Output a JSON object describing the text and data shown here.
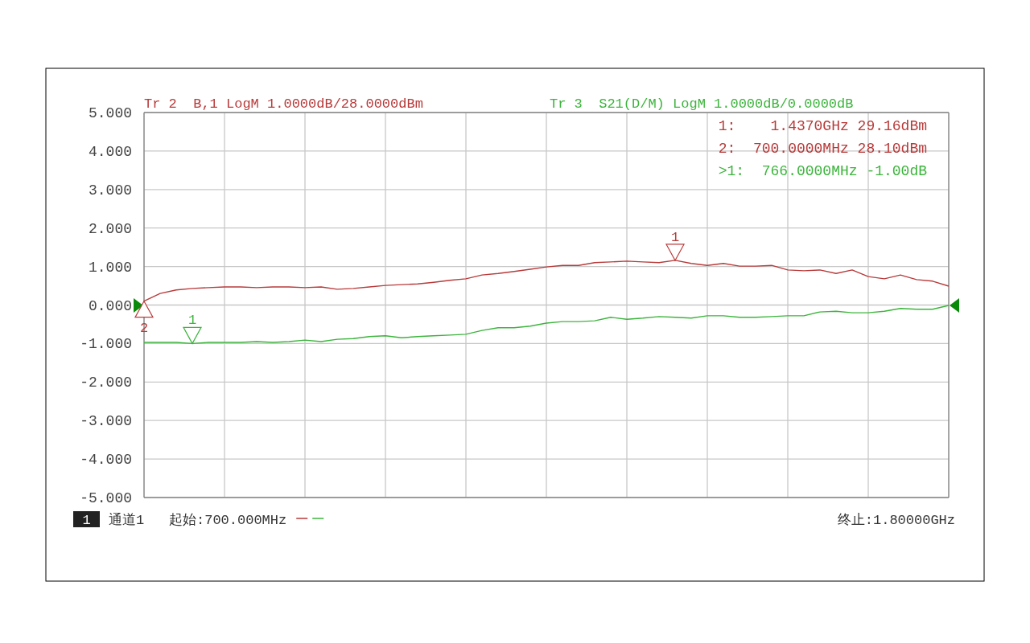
{
  "chart_data": {
    "type": "line",
    "categories": [
      null,
      null,
      null,
      null,
      null,
      null,
      null,
      null,
      null,
      null,
      null,
      null,
      null,
      null,
      null,
      null,
      null,
      null,
      null,
      null,
      null,
      null,
      null,
      null,
      null,
      null,
      null,
      null,
      null,
      null,
      null,
      null,
      null,
      null,
      null,
      null,
      null,
      null,
      null,
      null,
      null,
      null,
      null,
      null,
      null,
      null,
      null,
      null,
      null,
      null,
      null
    ],
    "ylim": [
      -5,
      5
    ],
    "yticks": [
      {
        "value": 5,
        "label": "5.000"
      },
      {
        "value": 4,
        "label": "4.000"
      },
      {
        "value": 3,
        "label": "3.000"
      },
      {
        "value": 2,
        "label": "2.000"
      },
      {
        "value": 1,
        "label": "1.000"
      },
      {
        "value": 0,
        "label": "0.000"
      },
      {
        "value": -1,
        "label": "-1.000"
      },
      {
        "value": -2,
        "label": "-2.000"
      },
      {
        "value": -3,
        "label": "-3.000"
      },
      {
        "value": -4,
        "label": "-4.000"
      },
      {
        "value": -5,
        "label": "-5.000"
      }
    ],
    "grid": true,
    "tick_labels": "y",
    "series": [
      {
        "name": "Tr 2  B,1 LogM 1.0000dB/28.0000dBm",
        "color": "#b83a3a",
        "values": [
          0.1,
          0.3,
          0.39,
          0.43,
          0.45,
          0.47,
          0.47,
          0.45,
          0.47,
          0.47,
          0.45,
          0.47,
          0.41,
          0.43,
          0.47,
          0.51,
          0.53,
          0.55,
          0.59,
          0.64,
          0.68,
          0.78,
          0.82,
          0.87,
          0.93,
          0.99,
          1.03,
          1.03,
          1.1,
          1.12,
          1.14,
          1.12,
          1.1,
          1.16,
          1.08,
          1.03,
          1.08,
          1.01,
          1.01,
          1.03,
          0.91,
          0.89,
          0.91,
          0.82,
          0.91,
          0.74,
          0.68,
          0.78,
          0.66,
          0.62,
          0.49
        ]
      },
      {
        "name": "Tr 3  S21(D/M) LogM 1.0000dB/0.0000dB",
        "color": "#3cb43c",
        "values": [
          -0.97,
          -0.97,
          -0.97,
          -1.0,
          -0.97,
          -0.97,
          -0.97,
          -0.95,
          -0.97,
          -0.95,
          -0.91,
          -0.95,
          -0.89,
          -0.87,
          -0.82,
          -0.8,
          -0.85,
          -0.82,
          -0.8,
          -0.78,
          -0.76,
          -0.66,
          -0.59,
          -0.59,
          -0.55,
          -0.47,
          -0.43,
          -0.43,
          -0.41,
          -0.32,
          -0.37,
          -0.34,
          -0.3,
          -0.32,
          -0.34,
          -0.28,
          -0.28,
          -0.32,
          -0.32,
          -0.3,
          -0.28,
          -0.28,
          -0.18,
          -0.16,
          -0.2,
          -0.2,
          -0.16,
          -0.09,
          -0.11,
          -0.11,
          -0.01
        ]
      }
    ],
    "annotations": [
      {
        "text": "1",
        "y": 1.16
      },
      {
        "text": "2",
        "y": 0.1
      },
      {
        "text": "1",
        "y": -1.0
      },
      "1:    1.4370GHz 29.16dBm",
      "2:  700.0000MHz 28.10dBm",
      ">1:  766.0000MHz -1.00dB",
      "1",
      "通道1",
      "起始:700.000MHz",
      "终止:1.80000GHz"
    ]
  }
}
